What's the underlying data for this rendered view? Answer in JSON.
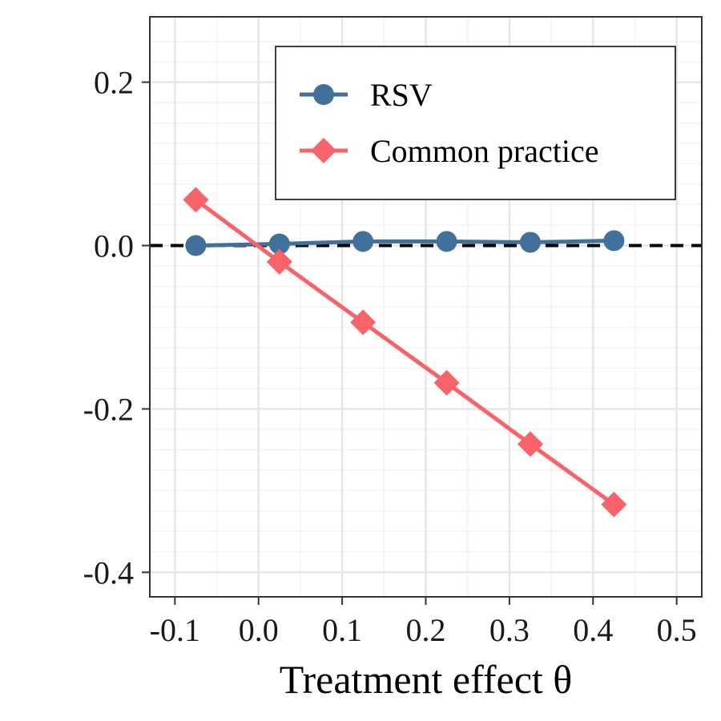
{
  "chart_data": {
    "type": "line",
    "title": "",
    "xlabel": "Treatment effect θ",
    "ylabel": "",
    "xlim": [
      -0.13,
      0.53
    ],
    "ylim": [
      -0.43,
      0.28
    ],
    "x_ticks": [
      -0.1,
      0.0,
      0.1,
      0.2,
      0.3,
      0.4,
      0.5
    ],
    "x_tick_labels": [
      "-0.1",
      "0.0",
      "0.1",
      "0.2",
      "0.3",
      "0.4",
      "0.5"
    ],
    "y_ticks": [
      -0.4,
      -0.2,
      0.0,
      0.2
    ],
    "y_tick_labels": [
      "-0.4",
      "-0.2",
      "0.0",
      "0.2"
    ],
    "x_minor_grid": [
      -0.05,
      0.05,
      0.15,
      0.25,
      0.35,
      0.45
    ],
    "y_minor_grid": [
      -0.375,
      -0.35,
      -0.325,
      -0.3,
      -0.275,
      -0.25,
      -0.225,
      -0.175,
      -0.15,
      -0.125,
      -0.1,
      -0.075,
      -0.05,
      -0.025,
      0.025,
      0.05,
      0.075,
      0.1,
      0.125,
      0.15,
      0.175,
      0.225,
      0.25
    ],
    "reference_line": {
      "y": 0.0,
      "style": "dashed",
      "color": "#000000"
    },
    "legend_position": "top-right",
    "x": [
      -0.075,
      0.025,
      0.125,
      0.225,
      0.325,
      0.425
    ],
    "series": [
      {
        "name": "RSV",
        "color": "#41709B",
        "marker": "circle",
        "values": [
          0.0,
          0.002,
          0.005,
          0.005,
          0.004,
          0.006
        ]
      },
      {
        "name": "Common practice",
        "color": "#F8636A",
        "marker": "diamond",
        "values": [
          0.056,
          -0.02,
          -0.094,
          -0.168,
          -0.243,
          -0.317
        ]
      }
    ]
  }
}
